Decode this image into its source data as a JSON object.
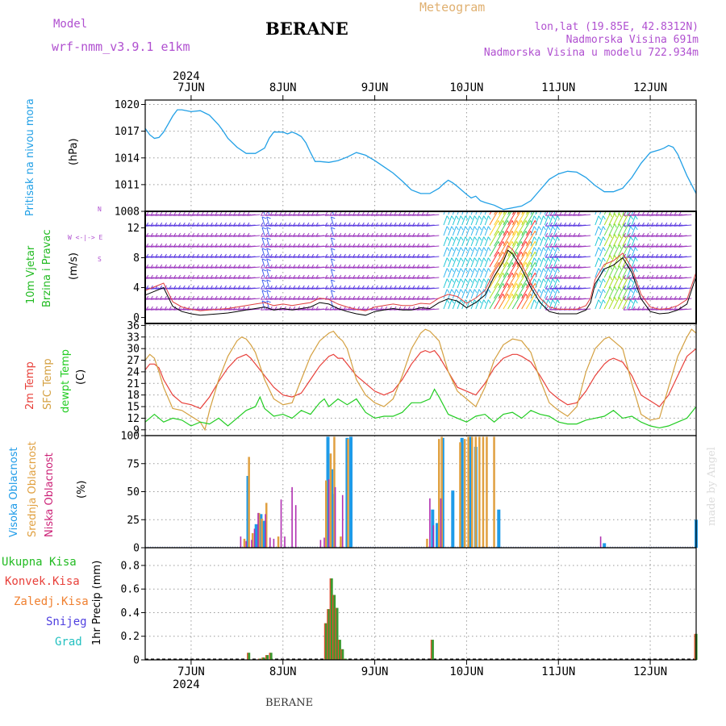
{
  "header": {
    "model_label": "Model",
    "model_name": "wrf-nmm_v3.9.1 e1km",
    "station": "BERANE",
    "meteogram": "Meteogram",
    "lonlat": "lon,lat (19.85E, 42.8312N)",
    "elevation": "Nadmorska Visina 691m",
    "model_elevation": "Nadmorska Visina u modelu 722.934m",
    "year_top": "2024",
    "year_bottom": "2024",
    "footer_station": "BERANE",
    "watermark": "made by Angel"
  },
  "colors": {
    "pressure": "#22a0e6",
    "temp2m": "#e8403a",
    "sfc": "#d4a040",
    "dew": "#22cc22",
    "high_cloud": "#1e9be8",
    "mid_cloud": "#e0a040",
    "low_cloud": "#b030b0",
    "wind_label": "#22bb22",
    "wind_dir": "#b050d0",
    "grid": "#999999"
  },
  "day_labels": [
    "7JUN",
    "8JUN",
    "9JUN",
    "10JUN",
    "11JUN",
    "12JUN"
  ],
  "panel_labels": {
    "pressure": {
      "name": "Pritisak na nivou mora",
      "unit": "(hPa)"
    },
    "wind": {
      "name1": "10m Vjetar",
      "name2": "Brzina i Pravac",
      "unit": "(m/s)",
      "dir_v": "N",
      "dir_row": "W <-|-> E",
      "dir_s": "S"
    },
    "temp": {
      "name1": "2m Temp",
      "name2": "SFC Temp",
      "name3": "dewpt Temp",
      "unit": "(C)"
    },
    "cloud": {
      "name1": "Visoka Oblacnost",
      "name2": "Srednja Oblacnost",
      "name3": "Niska Oblacnost",
      "unit": "(%)"
    },
    "precip": {
      "items": [
        "Ukupna Kisa",
        "Konvek.Kisa",
        "Zaledj.Kisa",
        "Snijeg",
        "Grad"
      ],
      "unit": "1hr Precip (mm)"
    }
  },
  "chart_data": [
    {
      "type": "line",
      "title": "",
      "ylabel": "(hPa)",
      "ylim": [
        1008,
        1020.5
      ],
      "yticks": [
        "1008",
        "1011",
        "1014",
        "1017",
        "1020"
      ],
      "x_unit": "day of June 2024",
      "series": [
        {
          "x": [
            6.5,
            6.55,
            6.6,
            6.65,
            6.7,
            6.75,
            6.8,
            6.85,
            6.9,
            7.0,
            7.1,
            7.2,
            7.3,
            7.35,
            7.4,
            7.5,
            7.6,
            7.7,
            7.8,
            7.85,
            7.9,
            8.0,
            8.05,
            8.1,
            8.15,
            8.2,
            8.25,
            8.3,
            8.35,
            8.4,
            8.5,
            8.6,
            8.7,
            8.8,
            8.9,
            9.0,
            9.1,
            9.2,
            9.3,
            9.4,
            9.5,
            9.6,
            9.7,
            9.75,
            9.8,
            9.85,
            9.9,
            10.0,
            10.05,
            10.1,
            10.15,
            10.2,
            10.3,
            10.4,
            10.5,
            10.6,
            10.7,
            10.8,
            10.9,
            11.0,
            11.1,
            11.2,
            11.3,
            11.4,
            11.5,
            11.6,
            11.7,
            11.8,
            11.9,
            12.0,
            12.1,
            12.15,
            12.2,
            12.25,
            12.3,
            12.4,
            12.5
          ],
          "values": [
            1017.3,
            1016.6,
            1016.2,
            1016.3,
            1016.9,
            1017.8,
            1018.7,
            1019.4,
            1019.4,
            1019.2,
            1019.3,
            1018.8,
            1017.7,
            1017.0,
            1016.2,
            1015.2,
            1014.5,
            1014.5,
            1015.1,
            1016.2,
            1016.9,
            1016.9,
            1016.7,
            1016.9,
            1016.7,
            1016.4,
            1015.7,
            1014.6,
            1013.6,
            1013.6,
            1013.5,
            1013.7,
            1014.1,
            1014.6,
            1014.3,
            1013.7,
            1013.0,
            1012.3,
            1011.4,
            1010.4,
            1010.0,
            1010.0,
            1010.6,
            1011.1,
            1011.5,
            1011.2,
            1010.8,
            1009.9,
            1009.5,
            1009.7,
            1009.2,
            1009.0,
            1008.7,
            1008.2,
            1008.4,
            1008.6,
            1009.2,
            1010.4,
            1011.6,
            1012.2,
            1012.5,
            1012.4,
            1011.8,
            1010.9,
            1010.2,
            1010.2,
            1010.6,
            1011.8,
            1013.4,
            1014.6,
            1014.9,
            1015.1,
            1015.4,
            1015.2,
            1014.4,
            1012.0,
            1010.0
          ]
        }
      ]
    },
    {
      "type": "line",
      "title": "",
      "ylabel": "(m/s)",
      "ylim": [
        -0.8,
        14.2
      ],
      "yticks": [
        "0",
        "4",
        "8",
        "12"
      ],
      "x_unit": "day of June 2024",
      "series": [
        {
          "name": "10m Vjetar",
          "x": [
            6.5,
            6.6,
            6.7,
            6.8,
            6.9,
            7.0,
            7.1,
            7.2,
            7.3,
            7.4,
            7.5,
            7.6,
            7.7,
            7.8,
            7.9,
            8.0,
            8.1,
            8.2,
            8.3,
            8.4,
            8.5,
            8.6,
            8.7,
            8.8,
            8.9,
            9.0,
            9.1,
            9.2,
            9.3,
            9.4,
            9.5,
            9.6,
            9.7,
            9.8,
            9.9,
            10.0,
            10.1,
            10.2,
            10.3,
            10.4,
            10.45,
            10.5,
            10.55,
            10.6,
            10.7,
            10.8,
            10.9,
            11.0,
            11.1,
            11.2,
            11.3,
            11.35,
            11.4,
            11.5,
            11.6,
            11.7,
            11.8,
            11.9,
            12.0,
            12.1,
            12.2,
            12.3,
            12.4,
            12.5
          ],
          "values": [
            3.0,
            3.5,
            4.0,
            1.5,
            0.8,
            0.5,
            0.3,
            0.4,
            0.5,
            0.6,
            0.8,
            1.0,
            1.2,
            1.4,
            1.0,
            1.2,
            1.0,
            1.2,
            1.4,
            2.0,
            1.8,
            1.2,
            0.8,
            0.5,
            0.3,
            0.8,
            1.0,
            1.2,
            1.0,
            1.0,
            1.3,
            1.2,
            2.0,
            2.5,
            2.2,
            1.3,
            2.0,
            3.0,
            5.5,
            7.5,
            9.0,
            8.5,
            7.5,
            6.5,
            4.0,
            2.0,
            0.8,
            0.5,
            0.5,
            0.5,
            1.0,
            2.0,
            4.5,
            6.5,
            7.0,
            8.0,
            6.0,
            2.5,
            0.8,
            0.5,
            0.6,
            1.0,
            1.8,
            5.5
          ]
        }
      ]
    },
    {
      "type": "line",
      "title": "",
      "ylabel": "(C)",
      "ylim": [
        7.5,
        36.5
      ],
      "yticks": [
        "9",
        "12",
        "15",
        "18",
        "21",
        "24",
        "27",
        "30",
        "33",
        "36"
      ],
      "x_unit": "day of June 2024",
      "series": [
        {
          "name": "2m Temp",
          "x": [
            6.5,
            6.55,
            6.6,
            6.65,
            6.7,
            6.8,
            6.9,
            7.0,
            7.1,
            7.2,
            7.3,
            7.4,
            7.5,
            7.55,
            7.6,
            7.65,
            7.7,
            7.8,
            7.9,
            8.0,
            8.1,
            8.2,
            8.3,
            8.4,
            8.5,
            8.55,
            8.6,
            8.65,
            8.7,
            8.8,
            8.9,
            9.0,
            9.1,
            9.2,
            9.3,
            9.4,
            9.5,
            9.55,
            9.6,
            9.65,
            9.7,
            9.8,
            9.9,
            10.0,
            10.1,
            10.2,
            10.3,
            10.4,
            10.5,
            10.55,
            10.6,
            10.7,
            10.8,
            10.9,
            11.0,
            11.1,
            11.2,
            11.3,
            11.4,
            11.5,
            11.55,
            11.6,
            11.7,
            11.8,
            11.9,
            12.0,
            12.1,
            12.2,
            12.3,
            12.4,
            12.5
          ],
          "values": [
            24.5,
            26.0,
            26.0,
            25.0,
            22.0,
            18.0,
            16.0,
            15.5,
            14.5,
            17.5,
            21.5,
            25.0,
            27.5,
            28.0,
            28.5,
            27.5,
            26.0,
            23.0,
            20.0,
            18.0,
            17.5,
            18.5,
            22.0,
            25.5,
            28.0,
            28.5,
            27.5,
            27.5,
            26.0,
            23.0,
            21.0,
            19.0,
            18.0,
            19.0,
            22.0,
            26.0,
            29.0,
            29.5,
            29.0,
            29.5,
            28.0,
            24.0,
            20.0,
            19.0,
            18.0,
            21.0,
            25.0,
            27.5,
            28.5,
            28.5,
            28.0,
            26.5,
            23.0,
            19.0,
            17.0,
            15.5,
            16.0,
            19.0,
            23.0,
            26.0,
            27.0,
            27.5,
            26.5,
            23.0,
            18.0,
            16.5,
            15.0,
            18.0,
            23.0,
            28.0,
            30.0
          ]
        },
        {
          "name": "SFC Temp",
          "x": [
            6.5,
            6.55,
            6.6,
            6.65,
            6.7,
            6.8,
            6.9,
            7.0,
            7.1,
            7.15,
            7.2,
            7.3,
            7.4,
            7.5,
            7.55,
            7.6,
            7.65,
            7.7,
            7.8,
            7.9,
            8.0,
            8.1,
            8.2,
            8.3,
            8.4,
            8.5,
            8.55,
            8.6,
            8.65,
            8.7,
            8.8,
            8.9,
            9.0,
            9.1,
            9.2,
            9.3,
            9.4,
            9.5,
            9.55,
            9.6,
            9.7,
            9.8,
            9.9,
            10.0,
            10.1,
            10.2,
            10.3,
            10.4,
            10.5,
            10.6,
            10.7,
            10.8,
            10.9,
            11.0,
            11.1,
            11.2,
            11.3,
            11.4,
            11.5,
            11.55,
            11.6,
            11.7,
            11.8,
            11.9,
            12.0,
            12.1,
            12.2,
            12.3,
            12.4,
            12.45,
            12.5
          ],
          "values": [
            27.0,
            28.5,
            27.5,
            24.0,
            20.0,
            14.5,
            14.0,
            12.5,
            11.0,
            9.0,
            14.0,
            22.0,
            28.0,
            32.0,
            33.0,
            32.5,
            31.0,
            29.0,
            22.0,
            17.0,
            15.5,
            16.0,
            22.0,
            28.0,
            32.0,
            34.0,
            34.5,
            33.0,
            32.0,
            30.0,
            22.0,
            18.0,
            16.0,
            15.0,
            17.0,
            23.0,
            30.0,
            34.0,
            35.0,
            34.5,
            32.0,
            24.0,
            19.0,
            17.0,
            15.0,
            20.0,
            27.0,
            31.0,
            32.5,
            32.0,
            29.0,
            22.0,
            16.0,
            14.0,
            12.5,
            15.0,
            24.0,
            30.0,
            32.5,
            33.0,
            32.0,
            30.0,
            21.0,
            13.0,
            11.5,
            12.0,
            20.0,
            28.0,
            33.0,
            35.0,
            34.0
          ]
        },
        {
          "name": "dewpt Temp",
          "x": [
            6.5,
            6.6,
            6.7,
            6.8,
            6.9,
            7.0,
            7.1,
            7.2,
            7.3,
            7.4,
            7.5,
            7.6,
            7.7,
            7.75,
            7.8,
            7.9,
            8.0,
            8.1,
            8.2,
            8.3,
            8.4,
            8.45,
            8.5,
            8.6,
            8.7,
            8.8,
            8.9,
            9.0,
            9.1,
            9.2,
            9.3,
            9.4,
            9.5,
            9.6,
            9.65,
            9.7,
            9.8,
            9.9,
            10.0,
            10.1,
            10.2,
            10.3,
            10.4,
            10.5,
            10.6,
            10.7,
            10.8,
            10.9,
            11.0,
            11.1,
            11.2,
            11.3,
            11.4,
            11.5,
            11.6,
            11.7,
            11.8,
            11.9,
            12.0,
            12.1,
            12.2,
            12.3,
            12.4,
            12.5
          ],
          "values": [
            11.0,
            13.0,
            11.0,
            12.0,
            11.5,
            10.0,
            11.0,
            10.5,
            12.0,
            10.0,
            12.0,
            14.0,
            15.0,
            17.5,
            14.5,
            12.5,
            13.0,
            12.0,
            14.0,
            13.0,
            16.0,
            17.0,
            15.0,
            17.0,
            15.5,
            17.0,
            13.5,
            12.0,
            12.5,
            12.5,
            13.5,
            16.0,
            16.0,
            17.0,
            19.5,
            17.5,
            13.0,
            12.0,
            11.0,
            12.5,
            13.0,
            11.0,
            13.0,
            13.5,
            12.0,
            14.0,
            13.0,
            12.5,
            11.0,
            10.5,
            10.5,
            11.5,
            12.0,
            12.5,
            14.0,
            12.0,
            12.5,
            11.0,
            10.0,
            9.5,
            10.0,
            11.0,
            12.0,
            15.0
          ]
        }
      ]
    },
    {
      "type": "bar",
      "title": "",
      "ylabel": "(%)",
      "ylim": [
        0,
        100
      ],
      "yticks": [
        "0",
        "25",
        "50",
        "75",
        "100"
      ],
      "x_unit": "day of June 2024",
      "series": [
        {
          "name": "Visoka Oblacnost",
          "x": [
            7.62,
            7.71,
            7.76,
            7.79,
            8.49,
            8.53,
            8.55,
            8.7,
            8.74,
            9.63,
            9.68,
            9.74,
            9.85,
            9.95,
            10.04,
            10.1,
            10.35,
            11.5,
            12.5
          ],
          "values": [
            64,
            21,
            30,
            24,
            99,
            70,
            48,
            98,
            99,
            34,
            22,
            98,
            51,
            98,
            99,
            90,
            34,
            4,
            25
          ]
        },
        {
          "name": "Srednja Oblacnost",
          "x": [
            7.58,
            7.63,
            7.67,
            7.74,
            7.77,
            7.82,
            7.95,
            8.47,
            8.52,
            8.56,
            8.63,
            8.71,
            9.57,
            9.7,
            9.73,
            9.93,
            9.98,
            10.02,
            10.06,
            10.1,
            10.14,
            10.18,
            10.22,
            10.3
          ],
          "values": [
            8,
            81,
            13,
            31,
            26,
            40,
            10,
            60,
            84,
            99,
            10,
            97,
            8,
            97,
            99,
            94,
            97,
            99,
            99,
            99,
            99,
            99,
            99,
            99
          ]
        },
        {
          "name": "Niska Oblacnost",
          "x": [
            7.54,
            7.6,
            7.66,
            7.69,
            7.73,
            7.81,
            7.86,
            7.9,
            7.98,
            8.02,
            8.1,
            8.14,
            8.41,
            8.45,
            8.5,
            8.57,
            8.65,
            9.6,
            9.64,
            9.72,
            11.46
          ],
          "values": [
            10,
            6,
            7,
            17,
            31,
            30,
            9,
            8,
            43,
            10,
            54,
            38,
            7,
            9,
            61,
            54,
            47,
            44,
            20,
            44,
            10
          ]
        }
      ]
    },
    {
      "type": "bar",
      "title": "",
      "ylabel": "1hr Precip (mm)",
      "ylim": [
        0,
        0.95
      ],
      "yticks": [
        "0",
        "0.2",
        "0.4",
        "0.6",
        "0.8"
      ],
      "x_unit": "day of June 2024",
      "series": [
        {
          "name": "Ukupna Kisa",
          "x": [
            7.63,
            7.75,
            7.79,
            7.83,
            7.87,
            8.47,
            8.5,
            8.53,
            8.56,
            8.59,
            8.62,
            8.65,
            8.68,
            9.63,
            12.5
          ],
          "values": [
            0.06,
            0.01,
            0.02,
            0.04,
            0.06,
            0.31,
            0.43,
            0.69,
            0.55,
            0.44,
            0.17,
            0.09,
            0.01,
            0.17,
            0.22
          ]
        }
      ]
    }
  ]
}
